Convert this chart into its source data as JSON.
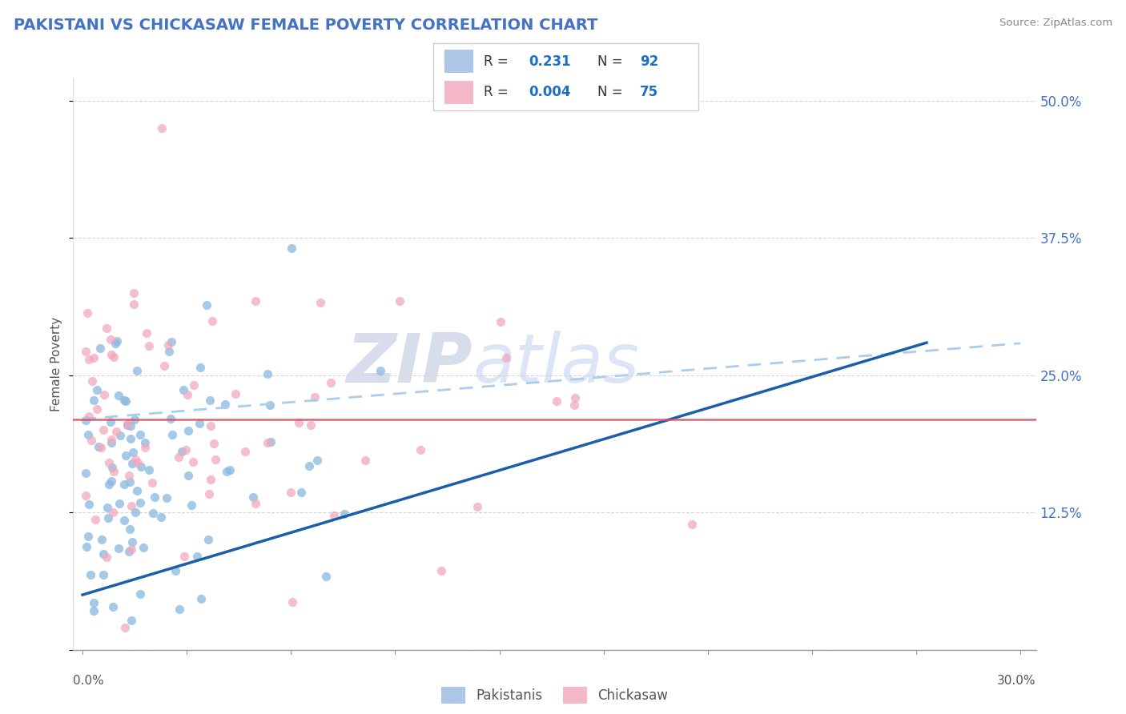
{
  "title": "PAKISTANI VS CHICKASAW FEMALE POVERTY CORRELATION CHART",
  "source_text": "Source: ZipAtlas.com",
  "ylabel": "Female Poverty",
  "xlim": [
    0.0,
    0.3
  ],
  "ylim": [
    0.0,
    0.52
  ],
  "blue_color": "#88b8e0",
  "pink_color": "#f0a8be",
  "blue_line_color": "#1a5fa8",
  "dashed_line_color": "#aaccee",
  "red_line_color": "#e05060",
  "red_line_y": 0.21,
  "watermark_zip": "ZIP",
  "watermark_atlas": "atlas",
  "legend_label1": "Pakistanis",
  "legend_label2": "Chickasaw",
  "blue_R": 0.231,
  "blue_N": 92,
  "pink_R": 0.004,
  "pink_N": 75,
  "blue_slope": 0.85,
  "blue_intercept": 0.05,
  "dashed_slope": 0.23,
  "dashed_intercept": 0.21,
  "ytick_vals": [
    0.0,
    0.125,
    0.25,
    0.375,
    0.5
  ],
  "ytick_labels": [
    "",
    "12.5%",
    "25.0%",
    "37.5%",
    "50.0%"
  ]
}
